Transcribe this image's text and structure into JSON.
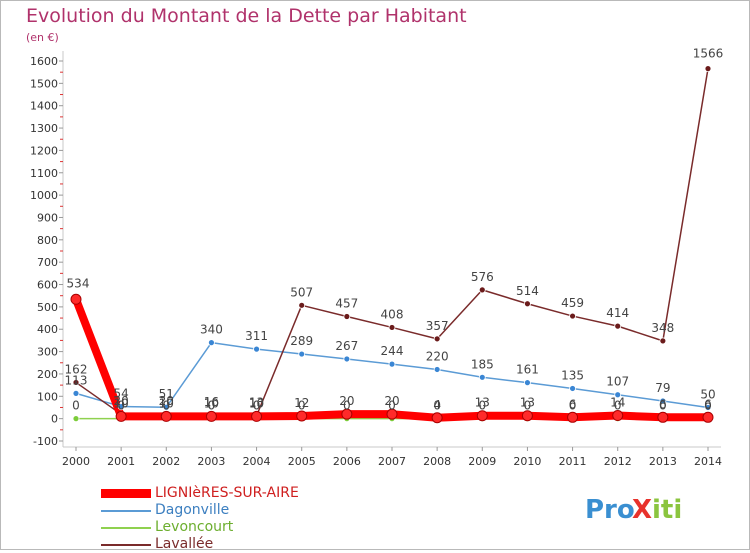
{
  "header": {
    "title": "Evolution du Montant de la Dette par Habitant",
    "subtitle": "(en €)"
  },
  "logo": {
    "text": "ProXiti"
  },
  "chart_data": {
    "type": "line",
    "title": "Evolution du Montant de la Dette par Habitant",
    "subtitle": "(en €)",
    "xlabel": "",
    "ylabel": "",
    "x": [
      "2000",
      "2001",
      "2002",
      "2003",
      "2004",
      "2005",
      "2006",
      "2007",
      "2008",
      "2009",
      "2010",
      "2011",
      "2012",
      "2013",
      "2014"
    ],
    "ylim": [
      -100,
      1650
    ],
    "yticks": [
      -100,
      0,
      100,
      200,
      300,
      400,
      500,
      600,
      700,
      800,
      900,
      1000,
      1100,
      1200,
      1300,
      1400,
      1500,
      1600
    ],
    "grid": false,
    "legend_position": "bottom-left",
    "series": [
      {
        "name": "LIGNIèRES-SUR-AIRE",
        "color": "#ff0000",
        "marker_color": "#ff2a2a",
        "values": [
          534,
          10,
          10,
          10,
          10,
          12,
          20,
          20,
          4,
          13,
          13,
          6,
          14,
          6,
          6
        ],
        "labels": [
          "534",
          "10",
          "10",
          "10",
          "10",
          "12",
          "20",
          "20",
          "4",
          "13",
          "13",
          "6",
          "14",
          "6",
          "6"
        ]
      },
      {
        "name": "Dagonville",
        "color": "#5b9bd5",
        "marker_color": "#3a86d4",
        "values": [
          113,
          54,
          51,
          340,
          311,
          289,
          267,
          244,
          220,
          185,
          161,
          135,
          107,
          79,
          50
        ],
        "labels": [
          "113",
          "54",
          "51",
          "340",
          "311",
          "289",
          "267",
          "244",
          "220",
          "185",
          "161",
          "135",
          "107",
          "79",
          "50"
        ]
      },
      {
        "name": "Levoncourt",
        "color": "#8fd14f",
        "marker_color": "#7ccc39",
        "values": [
          0,
          0,
          0,
          0,
          0,
          0,
          0,
          0,
          0,
          0,
          0,
          0,
          0,
          0,
          0
        ],
        "labels": [
          "0",
          "0",
          "0",
          "0",
          "0",
          "0",
          "0",
          "0",
          "0",
          "0",
          "0",
          "0",
          "0",
          "0",
          "0"
        ]
      },
      {
        "name": "Lavallée",
        "color": "#7a2b2b",
        "marker_color": "#6b1b1b",
        "values": [
          162,
          20,
          20,
          16,
          13,
          507,
          457,
          408,
          357,
          576,
          514,
          459,
          414,
          348,
          1566
        ],
        "labels": [
          "162",
          "20",
          "20",
          "16",
          "13",
          "507",
          "457",
          "408",
          "357",
          "576",
          "514",
          "459",
          "414",
          "348",
          "1566"
        ]
      }
    ]
  }
}
